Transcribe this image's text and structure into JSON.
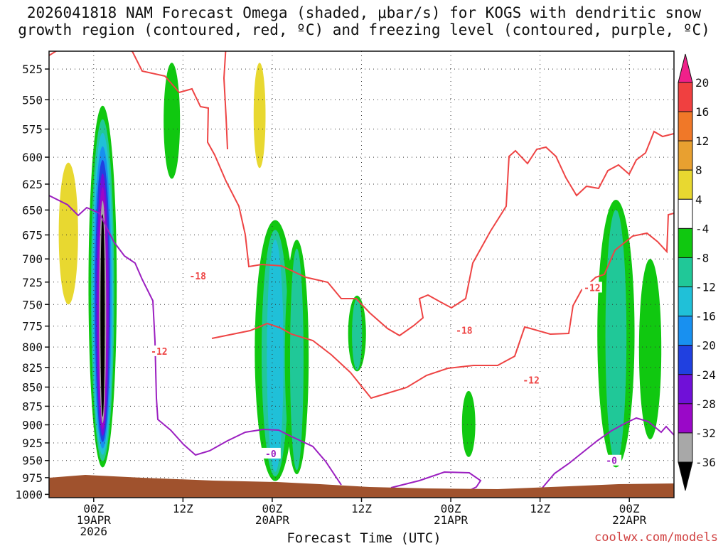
{
  "title": {
    "line1": "2026041818 NAM Forecast Omega (shaded, μbar/s) for KOGS with dendritic snow",
    "line2": "growth region (contoured, red, ºC) and freezing level (contoured, purple, ºC)"
  },
  "credit": "coolwx.com/models",
  "colors": {
    "background": "#ffffff",
    "terrain": "#a0522d",
    "dgz_contour": "#ee4444",
    "freezing_contour": "#9b1fc0",
    "grid": "#222222"
  },
  "chart_data": {
    "type": "heatmap",
    "xlabel": "Forecast Time (UTC)",
    "ylabel": "",
    "x_ticks": [
      {
        "hour": 0,
        "line1": "00Z",
        "line2": "19APR",
        "line3": "2026"
      },
      {
        "hour": 12,
        "line1": "12Z",
        "line2": "",
        "line3": ""
      },
      {
        "hour": 24,
        "line1": "00Z",
        "line2": "20APR",
        "line3": ""
      },
      {
        "hour": 36,
        "line1": "12Z",
        "line2": "",
        "line3": ""
      },
      {
        "hour": 48,
        "line1": "00Z",
        "line2": "21APR",
        "line3": ""
      },
      {
        "hour": 60,
        "line1": "12Z",
        "line2": "",
        "line3": ""
      },
      {
        "hour": 72,
        "line1": "00Z",
        "line2": "22APR",
        "line3": ""
      }
    ],
    "xlim_hours": [
      -6,
      78
    ],
    "y_ticks": [
      525,
      550,
      575,
      600,
      625,
      650,
      675,
      700,
      725,
      750,
      775,
      800,
      825,
      850,
      875,
      900,
      925,
      950,
      975,
      1000
    ],
    "ylim_mb": [
      1005,
      511
    ],
    "colorbar": {
      "labels": [
        "20",
        "16",
        "12",
        "8",
        "4",
        "-4",
        "-8",
        "-12",
        "-16",
        "-20",
        "-24",
        "-28",
        "-32",
        "-36"
      ],
      "bands": [
        {
          "from": 16,
          "to": 20,
          "color": "#f04040"
        },
        {
          "from": 12,
          "to": 16,
          "color": "#f07828"
        },
        {
          "from": 8,
          "to": 12,
          "color": "#e8a030"
        },
        {
          "from": 4,
          "to": 8,
          "color": "#e8d830"
        },
        {
          "from": -4,
          "to": 4,
          "color": "#ffffff"
        },
        {
          "from": -8,
          "to": -4,
          "color": "#10c810"
        },
        {
          "from": -12,
          "to": -8,
          "color": "#20c898"
        },
        {
          "from": -16,
          "to": -12,
          "color": "#20c0d8"
        },
        {
          "from": -20,
          "to": -16,
          "color": "#1890f0"
        },
        {
          "from": -24,
          "to": -20,
          "color": "#2040e0"
        },
        {
          "from": -28,
          "to": -24,
          "color": "#7010d8"
        },
        {
          "from": -32,
          "to": -28,
          "color": "#9a08c8"
        },
        {
          "from": -36,
          "to": -32,
          "color": "#a8a8a8"
        }
      ],
      "top_color": "#f0208a",
      "bottom_color": "#000000"
    },
    "contour_labels": [
      {
        "text": "-18",
        "hour": 14.0,
        "mb": 718,
        "color": "#ee4444"
      },
      {
        "text": "-18",
        "hour": 49.8,
        "mb": 780,
        "color": "#ee4444"
      },
      {
        "text": "-12",
        "hour": 8.8,
        "mb": 805,
        "color": "#ee4444"
      },
      {
        "text": "-12",
        "hour": 67.0,
        "mb": 731,
        "color": "#ee4444"
      },
      {
        "text": "-12",
        "hour": 58.8,
        "mb": 841,
        "color": "#ee4444"
      },
      {
        "text": "-0",
        "hour": 23.8,
        "mb": 940,
        "color": "#9b1fc0"
      },
      {
        "text": "-0",
        "hour": 69.6,
        "mb": 950,
        "color": "#9b1fc0"
      }
    ],
    "omega_features": [
      {
        "hour": 1.2,
        "mb_top": 555,
        "mb_bot": 960,
        "width_h": 3.8,
        "bands": [
          "#10c810",
          "#20c898",
          "#20c0d8",
          "#1890f0",
          "#2040e0",
          "#7010d8",
          "#9a08c8",
          "#a8a8a8",
          "#000000"
        ]
      },
      {
        "hour": 24.4,
        "mb_top": 660,
        "mb_bot": 980,
        "width_h": 5.5,
        "bands": [
          "#10c810",
          "#20c898",
          "#20c0d8"
        ]
      },
      {
        "hour": 27.3,
        "mb_top": 680,
        "mb_bot": 970,
        "width_h": 3.2,
        "bands": [
          "#10c810",
          "#20c898"
        ]
      },
      {
        "hour": 10.5,
        "mb_top": 520,
        "mb_bot": 620,
        "width_h": 2.2,
        "bands": [
          "#10c810"
        ]
      },
      {
        "hour": 35.4,
        "mb_top": 740,
        "mb_bot": 830,
        "width_h": 2.4,
        "bands": [
          "#10c810",
          "#20c898"
        ]
      },
      {
        "hour": 50.4,
        "mb_top": 855,
        "mb_bot": 945,
        "width_h": 1.8,
        "bands": [
          "#10c810"
        ]
      },
      {
        "hour": 70.2,
        "mb_top": 640,
        "mb_bot": 960,
        "width_h": 5.0,
        "bands": [
          "#10c810",
          "#20c898"
        ]
      },
      {
        "hour": 74.8,
        "mb_top": 700,
        "mb_bot": 920,
        "width_h": 3.0,
        "bands": [
          "#10c810"
        ]
      },
      {
        "hour": -3.4,
        "mb_top": 605,
        "mb_bot": 750,
        "width_h": 2.6,
        "bands": [
          "#e8d830"
        ]
      },
      {
        "hour": 22.3,
        "mb_top": 520,
        "mb_bot": 610,
        "width_h": 1.6,
        "bands": [
          "#e8d830"
        ]
      }
    ]
  }
}
